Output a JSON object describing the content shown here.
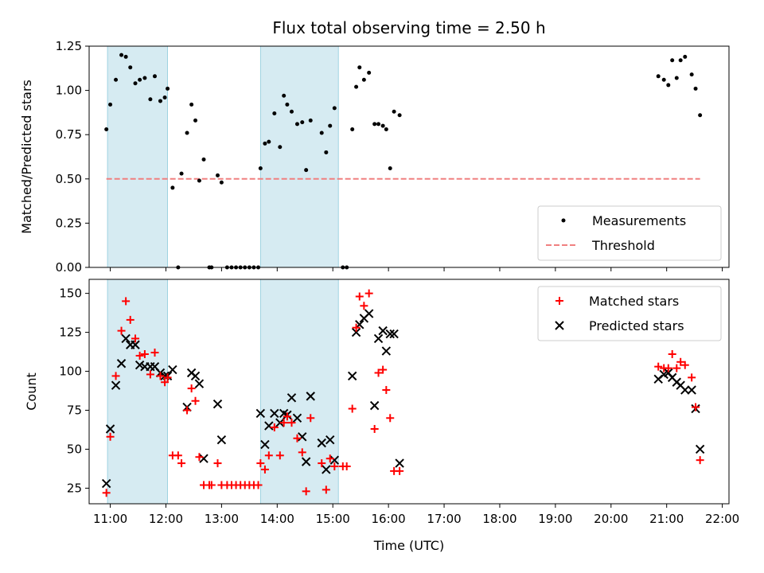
{
  "chart_data": [
    {
      "type": "scatter",
      "title": "Flux total observing time = 2.50 h",
      "xlabel": "",
      "ylabel": "Matched/Predicted stars",
      "xlim": [
        10.62,
        22.12
      ],
      "ylim": [
        0,
        1.25
      ],
      "yticks": [
        0,
        0.25,
        0.5,
        0.75,
        1.0,
        1.25
      ],
      "ytick_labels": [
        "0.00",
        "0.25",
        "0.50",
        "0.75",
        "1.00",
        "1.25"
      ],
      "legend_position": "lower-right",
      "shaded_intervals": [
        [
          10.95,
          12.03
        ],
        [
          13.7,
          15.1
        ]
      ],
      "series": [
        {
          "name": "Measurements",
          "marker": "dot",
          "color": "#000000",
          "x": [
            10.93,
            11.0,
            11.1,
            11.2,
            11.28,
            11.36,
            11.45,
            11.53,
            11.62,
            11.72,
            11.8,
            11.9,
            11.98,
            12.03,
            12.12,
            12.22,
            12.28,
            12.38,
            12.46,
            12.53,
            12.6,
            12.68,
            12.78,
            12.82,
            12.93,
            13.0,
            13.1,
            13.18,
            13.26,
            13.34,
            13.42,
            13.5,
            13.58,
            13.66,
            13.7,
            13.78,
            13.85,
            13.95,
            14.05,
            14.12,
            14.18,
            14.26,
            14.36,
            14.45,
            14.52,
            14.6,
            14.8,
            14.88,
            14.95,
            15.03,
            15.18,
            15.25,
            15.35,
            15.42,
            15.48,
            15.56,
            15.65,
            15.75,
            15.82,
            15.9,
            15.96,
            16.03,
            16.1,
            16.2,
            20.85,
            20.95,
            21.03,
            21.1,
            21.18,
            21.25,
            21.33,
            21.45,
            21.52,
            21.6
          ],
          "values": [
            0.78,
            0.92,
            1.06,
            1.2,
            1.19,
            1.13,
            1.04,
            1.06,
            1.07,
            0.95,
            1.08,
            0.94,
            0.96,
            1.01,
            0.45,
            0,
            0.53,
            0.76,
            0.92,
            0.83,
            0.49,
            0.61,
            0,
            0,
            0.52,
            0.48,
            0,
            0,
            0,
            0,
            0,
            0,
            0,
            0,
            0.56,
            0.7,
            0.71,
            0.87,
            0.68,
            0.97,
            0.92,
            0.88,
            0.81,
            0.82,
            0.55,
            0.83,
            0.76,
            0.65,
            0.8,
            0.9,
            0,
            0,
            0.78,
            1.02,
            1.13,
            1.06,
            1.1,
            0.81,
            0.81,
            0.8,
            0.78,
            0.56,
            0.88,
            0.86,
            1.08,
            1.06,
            1.03,
            1.17,
            1.07,
            1.17,
            1.19,
            1.09,
            1.01,
            0.86
          ]
        },
        {
          "name": "Threshold",
          "style": "dashed-line",
          "color": "#f08080",
          "x": [
            10.93,
            21.6
          ],
          "values": [
            0.5,
            0.5
          ]
        }
      ]
    },
    {
      "type": "scatter",
      "title": "",
      "xlabel": "Time (UTC)",
      "ylabel": "Count",
      "xlim": [
        10.62,
        22.12
      ],
      "ylim": [
        15,
        159
      ],
      "yticks": [
        25,
        50,
        75,
        100,
        125,
        150
      ],
      "ytick_labels": [
        "25",
        "50",
        "75",
        "100",
        "125",
        "150"
      ],
      "xticks": [
        11,
        12,
        13,
        14,
        15,
        16,
        17,
        18,
        19,
        20,
        21,
        22
      ],
      "xtick_labels": [
        "11:00",
        "12:00",
        "13:00",
        "14:00",
        "15:00",
        "16:00",
        "17:00",
        "18:00",
        "19:00",
        "20:00",
        "21:00",
        "22:00"
      ],
      "legend_position": "upper-right",
      "shaded_intervals": [
        [
          10.95,
          12.03
        ],
        [
          13.7,
          15.1
        ]
      ],
      "series": [
        {
          "name": "Matched stars",
          "marker": "plus",
          "color": "#ff0000",
          "x": [
            10.93,
            11.0,
            11.1,
            11.2,
            11.28,
            11.36,
            11.45,
            11.53,
            11.62,
            11.72,
            11.8,
            11.9,
            11.98,
            12.03,
            12.12,
            12.22,
            12.28,
            12.38,
            12.46,
            12.53,
            12.6,
            12.68,
            12.78,
            12.82,
            12.93,
            13.0,
            13.1,
            13.18,
            13.26,
            13.34,
            13.42,
            13.5,
            13.58,
            13.66,
            13.7,
            13.78,
            13.85,
            13.95,
            14.05,
            14.12,
            14.18,
            14.26,
            14.36,
            14.45,
            14.52,
            14.6,
            14.8,
            14.88,
            14.95,
            15.03,
            15.18,
            15.25,
            15.35,
            15.42,
            15.48,
            15.56,
            15.65,
            15.75,
            15.82,
            15.9,
            15.96,
            16.03,
            16.1,
            16.2,
            20.85,
            20.95,
            21.03,
            21.1,
            21.18,
            21.25,
            21.33,
            21.45,
            21.52,
            21.6
          ],
          "values": [
            22,
            58,
            97,
            126,
            145,
            133,
            121,
            110,
            111,
            98,
            112,
            97,
            93,
            96,
            46,
            46,
            41,
            75,
            89,
            81,
            45,
            27,
            27,
            27,
            41,
            27,
            27,
            27,
            27,
            27,
            27,
            27,
            27,
            27,
            41,
            37,
            46,
            64,
            46,
            67,
            71,
            67,
            57,
            48,
            23,
            70,
            41,
            24,
            44,
            39,
            39,
            39,
            76,
            128,
            148,
            142,
            150,
            63,
            99,
            101,
            88,
            70,
            36,
            36,
            103,
            102,
            102,
            111,
            102,
            106,
            104,
            96,
            77,
            43
          ]
        },
        {
          "name": "Predicted stars",
          "marker": "x",
          "color": "#000000",
          "x": [
            10.93,
            11.0,
            11.1,
            11.2,
            11.28,
            11.36,
            11.45,
            11.53,
            11.62,
            11.72,
            11.8,
            11.9,
            11.98,
            12.03,
            12.12,
            12.38,
            12.46,
            12.53,
            12.6,
            12.68,
            12.93,
            13.0,
            13.7,
            13.78,
            13.85,
            13.95,
            14.05,
            14.12,
            14.18,
            14.26,
            14.36,
            14.45,
            14.52,
            14.6,
            14.8,
            14.88,
            14.95,
            15.03,
            15.35,
            15.42,
            15.48,
            15.56,
            15.65,
            15.75,
            15.82,
            15.9,
            15.96,
            16.03,
            16.1,
            16.2,
            20.85,
            20.95,
            21.03,
            21.1,
            21.18,
            21.25,
            21.33,
            21.45,
            21.52,
            21.6
          ],
          "values": [
            28,
            63,
            91,
            105,
            121,
            117,
            117,
            104,
            103,
            103,
            103,
            99,
            97,
            97,
            101,
            77,
            99,
            97,
            92,
            44,
            79,
            56,
            73,
            53,
            65,
            73,
            67,
            73,
            72,
            83,
            70,
            58,
            42,
            84,
            54,
            37,
            56,
            43,
            97,
            125,
            130,
            134,
            137,
            78,
            121,
            126,
            113,
            124,
            124,
            41,
            95,
            98,
            99,
            96,
            93,
            91,
            88,
            88,
            76,
            50
          ]
        }
      ]
    }
  ]
}
